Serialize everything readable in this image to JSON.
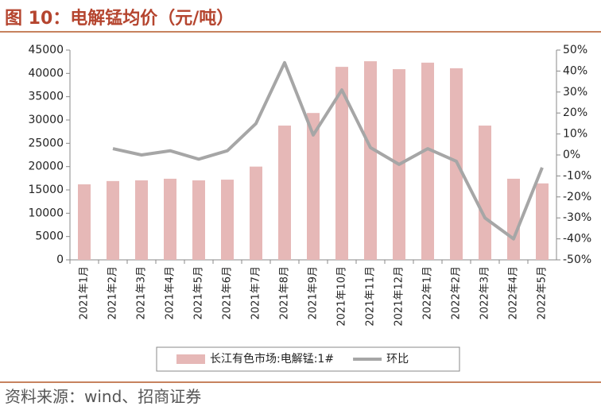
{
  "chart_data": {
    "type": "bar_line",
    "title": "图 10：电解锰均价（元/吨）",
    "source": "资料来源：wind、招商证券",
    "categories": [
      "2021年1月",
      "2021年2月",
      "2021年3月",
      "2021年4月",
      "2021年5月",
      "2021年6月",
      "2021年7月",
      "2021年8月",
      "2021年9月",
      "2021年10月",
      "2021年11月",
      "2021年12月",
      "2022年1月",
      "2022年2月",
      "2022年3月",
      "2022年4月",
      "2022年5月"
    ],
    "series": [
      {
        "name": "长江有色市场:电解锰:1#",
        "type": "bar",
        "color": "#e6b8b7",
        "axis": "y",
        "values": [
          16200,
          16900,
          17050,
          17400,
          17050,
          17200,
          20000,
          28800,
          31500,
          41400,
          42600,
          40900,
          42300,
          41100,
          28800,
          17400,
          16400
        ]
      },
      {
        "name": "环比",
        "type": "line",
        "color": "#a6a6a6",
        "axis": "y2",
        "values": [
          null,
          3,
          0,
          2,
          -2,
          2,
          15,
          44,
          9.5,
          31,
          3.5,
          -4.5,
          3,
          -3,
          -30,
          -40,
          -6
        ]
      }
    ],
    "ylim": [
      0,
      45000
    ],
    "yticks": [
      0,
      5000,
      10000,
      15000,
      20000,
      25000,
      30000,
      35000,
      40000,
      45000
    ],
    "y2lim": [
      -50,
      50
    ],
    "y2ticks": [
      {
        "value": -50,
        "label": "-50%"
      },
      {
        "value": -40,
        "label": "-40%"
      },
      {
        "value": -30,
        "label": "-30%"
      },
      {
        "value": -20,
        "label": "-20%"
      },
      {
        "value": -10,
        "label": "-10%"
      },
      {
        "value": 0,
        "label": "0%"
      },
      {
        "value": 10,
        "label": "10%"
      },
      {
        "value": 20,
        "label": "20%"
      },
      {
        "value": 30,
        "label": "30%"
      },
      {
        "value": 40,
        "label": "40%"
      },
      {
        "value": 50,
        "label": "50%"
      }
    ]
  }
}
